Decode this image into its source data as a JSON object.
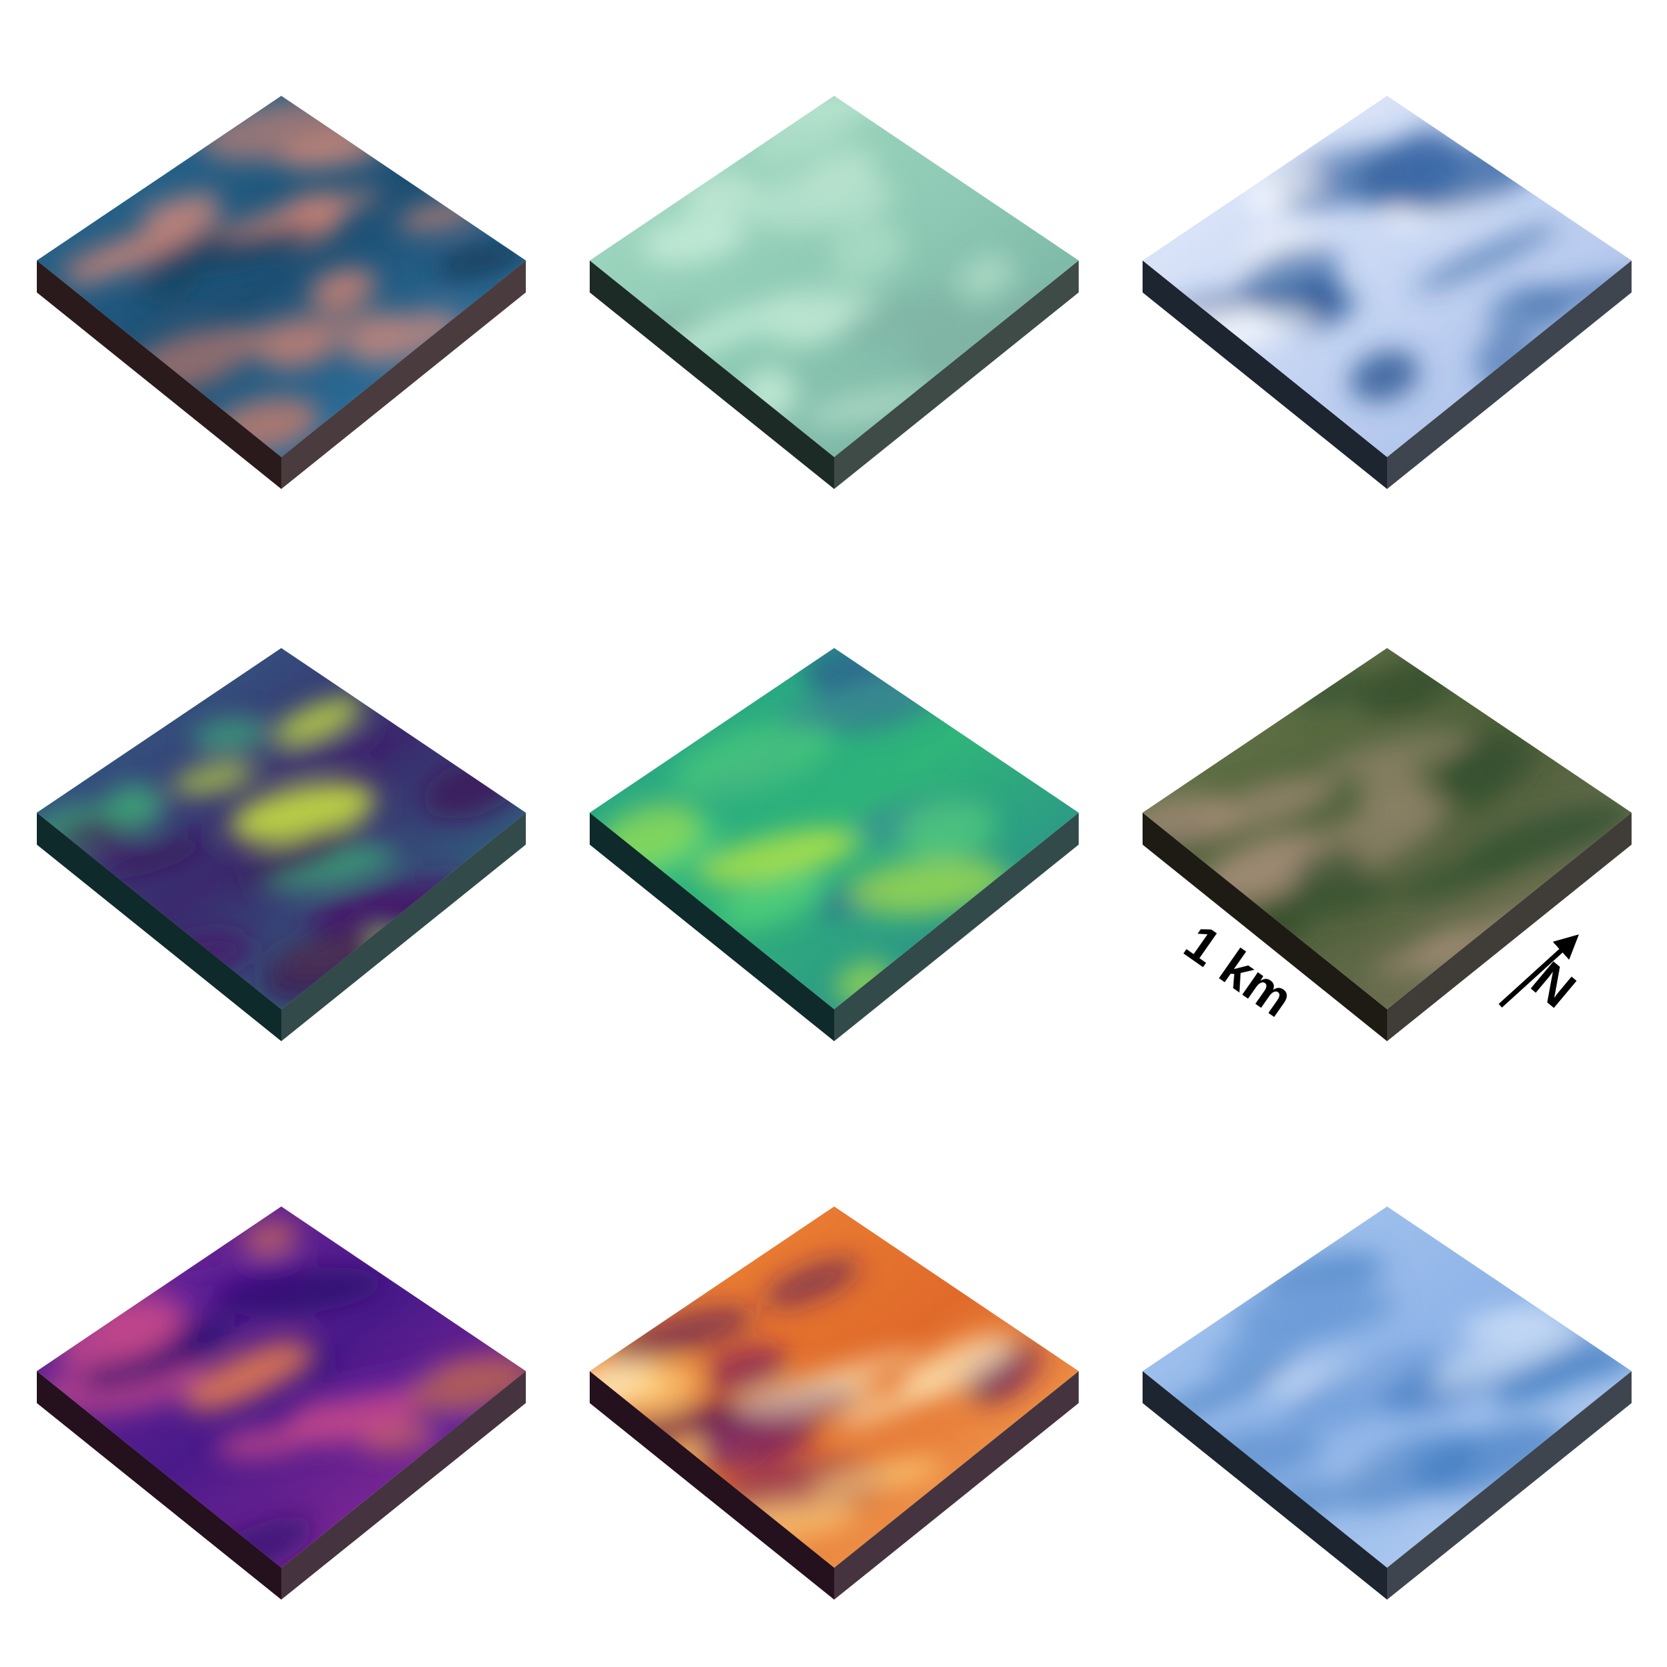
{
  "scale_label": "1 km",
  "north_label": "N"
}
